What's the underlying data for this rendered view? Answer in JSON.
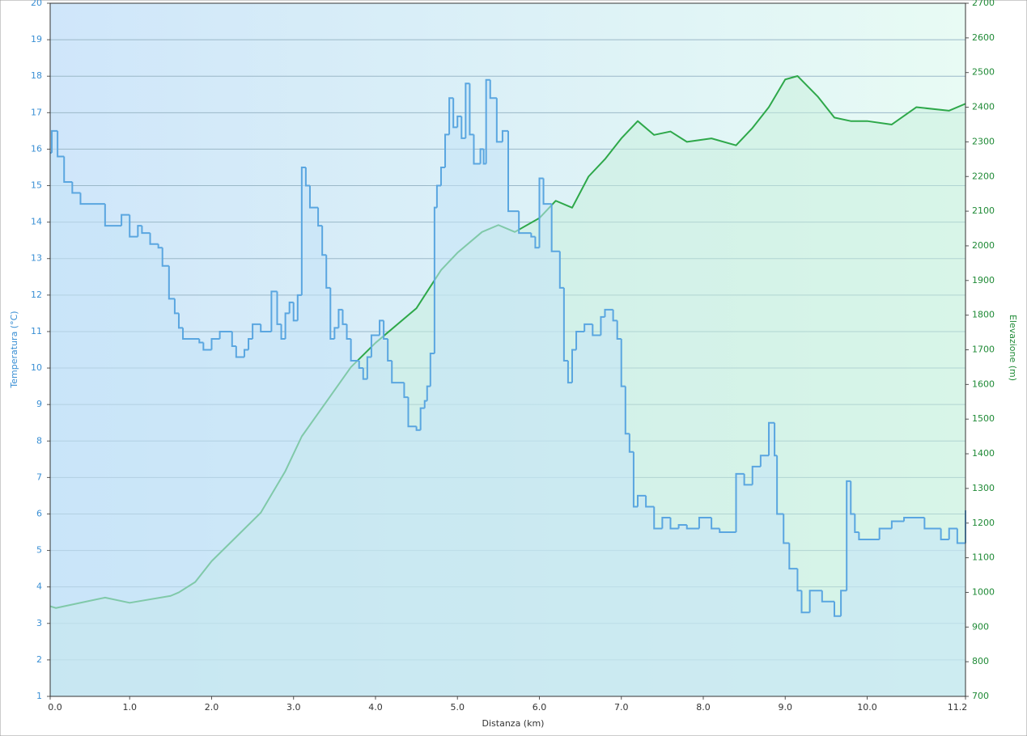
{
  "chart_data": {
    "type": "line",
    "x_label": "Distanza  (km)",
    "y_label": "Temperatura (°C)",
    "y2_label": "Elevazione (m)",
    "xlim": [
      0.03,
      11.2
    ],
    "xticks": [
      {
        "value": 0,
        "label": "0.0"
      },
      {
        "value": 1,
        "label": "1.0"
      },
      {
        "value": 2,
        "label": "2.0"
      },
      {
        "value": 3,
        "label": "3.0"
      },
      {
        "value": 4,
        "label": "4.0"
      },
      {
        "value": 5,
        "label": "5.0"
      },
      {
        "value": 6,
        "label": "6.0"
      },
      {
        "value": 7,
        "label": "7.0"
      },
      {
        "value": 8,
        "label": "8.0"
      },
      {
        "value": 9,
        "label": "9.0"
      },
      {
        "value": 10,
        "label": "10.0"
      },
      11.2
    ],
    "ylim": [
      1,
      20
    ],
    "yticks": [
      1,
      2,
      3,
      4,
      5,
      6,
      7,
      8,
      9,
      10,
      11,
      12,
      13,
      14,
      15,
      16,
      17,
      18,
      19,
      20
    ],
    "y2lim": [
      700,
      2700
    ],
    "y2ticks": [
      700,
      800,
      900,
      1000,
      1100,
      1200,
      1300,
      1400,
      1500,
      1600,
      1700,
      1800,
      1900,
      2000,
      2100,
      2200,
      2300,
      2400,
      2500,
      2600,
      2700
    ],
    "grid": true,
    "series": [
      {
        "color": "#5aa6e0",
        "step": true,
        "fill": "#c4e4f8",
        "x": [
          0.03,
          0.05,
          0.12,
          0.2,
          0.3,
          0.4,
          0.7,
          0.9,
          1.0,
          1.1,
          1.15,
          1.25,
          1.35,
          1.4,
          1.48,
          1.55,
          1.6,
          1.65,
          1.85,
          1.9,
          2.0,
          2.1,
          2.25,
          2.3,
          2.4,
          2.45,
          2.5,
          2.6,
          2.73,
          2.8,
          2.85,
          2.9,
          2.95,
          3.0,
          3.05,
          3.1,
          3.15,
          3.2,
          3.3,
          3.35,
          3.4,
          3.45,
          3.5,
          3.55,
          3.6,
          3.65,
          3.7,
          3.8,
          3.85,
          3.9,
          3.95,
          4.05,
          4.1,
          4.15,
          4.2,
          4.35,
          4.4,
          4.5,
          4.55,
          4.6,
          4.63,
          4.67,
          4.72,
          4.75,
          4.8,
          4.85,
          4.9,
          4.95,
          5.0,
          5.05,
          5.1,
          5.15,
          5.2,
          5.28,
          5.32,
          5.35,
          5.4,
          5.48,
          5.55,
          5.62,
          5.75,
          5.9,
          5.95,
          6.0,
          6.05,
          6.15,
          6.25,
          6.3,
          6.35,
          6.4,
          6.45,
          6.55,
          6.65,
          6.75,
          6.8,
          6.9,
          6.95,
          7.0,
          7.05,
          7.1,
          7.15,
          7.2,
          7.3,
          7.4,
          7.5,
          7.6,
          7.7,
          7.8,
          7.95,
          8.1,
          8.2,
          8.4,
          8.5,
          8.6,
          8.7,
          8.8,
          8.87,
          8.9,
          8.98,
          9.05,
          9.15,
          9.2,
          9.3,
          9.45,
          9.6,
          9.68,
          9.75,
          9.8,
          9.85,
          9.9,
          10.15,
          10.3,
          10.45,
          10.7,
          10.9,
          11.0,
          11.1,
          11.2
        ],
        "values": [
          15.9,
          16.5,
          15.8,
          15.1,
          14.8,
          14.5,
          13.9,
          14.2,
          13.6,
          13.9,
          13.7,
          13.4,
          13.3,
          12.8,
          11.9,
          11.5,
          11.1,
          10.8,
          10.7,
          10.5,
          10.8,
          11.0,
          10.6,
          10.3,
          10.5,
          10.8,
          11.2,
          11.0,
          12.1,
          11.2,
          10.8,
          11.5,
          11.8,
          11.3,
          12.0,
          15.5,
          15.0,
          14.4,
          13.9,
          13.1,
          12.2,
          10.8,
          11.1,
          11.6,
          11.2,
          10.8,
          10.2,
          10.0,
          9.7,
          10.3,
          10.9,
          11.3,
          10.8,
          10.2,
          9.6,
          9.2,
          8.4,
          8.3,
          8.9,
          9.1,
          9.5,
          10.4,
          14.4,
          15.0,
          15.5,
          16.4,
          17.4,
          16.6,
          16.9,
          16.3,
          17.8,
          16.4,
          15.6,
          16.0,
          15.6,
          17.9,
          17.4,
          16.2,
          16.5,
          14.3,
          13.7,
          13.6,
          13.3,
          15.2,
          14.5,
          13.2,
          12.2,
          10.2,
          9.6,
          10.5,
          11.0,
          11.2,
          10.9,
          11.4,
          11.6,
          11.3,
          10.8,
          9.5,
          8.2,
          7.7,
          6.2,
          6.5,
          6.2,
          5.6,
          5.9,
          5.6,
          5.7,
          5.6,
          5.9,
          5.6,
          5.5,
          7.1,
          6.8,
          7.3,
          7.6,
          8.5,
          7.6,
          6.0,
          5.2,
          4.5,
          3.9,
          3.3,
          3.9,
          3.6,
          3.2,
          3.9,
          6.9,
          6.0,
          5.5,
          5.3,
          5.6,
          5.8,
          5.9,
          5.6,
          5.3,
          5.6,
          5.2,
          6.1
        ]
      },
      {
        "color": "#2ea84a",
        "axis": "y2",
        "fill": "#c8f0dc",
        "x": [
          0.03,
          0.1,
          0.5,
          0.7,
          1.0,
          1.5,
          1.6,
          1.8,
          2.0,
          2.3,
          2.6,
          2.9,
          3.1,
          3.4,
          3.7,
          4.0,
          4.5,
          4.8,
          5.0,
          5.3,
          5.5,
          5.7,
          6.0,
          6.2,
          6.4,
          6.6,
          6.8,
          7.0,
          7.2,
          7.4,
          7.6,
          7.8,
          8.1,
          8.4,
          8.6,
          8.8,
          9.0,
          9.15,
          9.4,
          9.6,
          9.8,
          10.0,
          10.3,
          10.6,
          11.0,
          11.2
        ],
        "values": [
          960,
          955,
          975,
          985,
          970,
          990,
          1000,
          1030,
          1090,
          1160,
          1230,
          1350,
          1450,
          1550,
          1650,
          1720,
          1820,
          1930,
          1980,
          2040,
          2060,
          2040,
          2080,
          2130,
          2110,
          2200,
          2250,
          2310,
          2360,
          2320,
          2330,
          2300,
          2310,
          2290,
          2340,
          2400,
          2480,
          2490,
          2430,
          2370,
          2360,
          2360,
          2350,
          2400,
          2390,
          2410
        ]
      }
    ]
  }
}
